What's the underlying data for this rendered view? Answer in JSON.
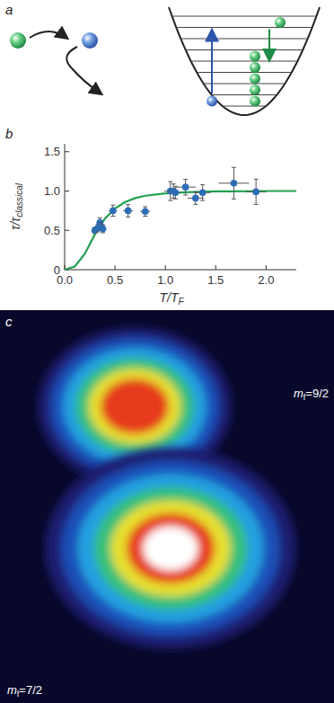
{
  "panel_a": {
    "letter": "a"
  },
  "chart_data": {
    "letter": "b",
    "type": "scatter",
    "x_label": "T/T",
    "x_label_sub": "F",
    "y_label": "τ/τ",
    "y_label_sub": "classical",
    "xlim": [
      0,
      2.3
    ],
    "ylim": [
      0,
      1.6
    ],
    "xticks": [
      {
        "value": 0,
        "label": "0.0"
      },
      0.5,
      {
        "value": 1,
        "label": "1.0"
      },
      1.5,
      {
        "value": 2,
        "label": "2.0"
      }
    ],
    "yticks": [
      0,
      0.5,
      {
        "value": 1,
        "label": "1.0"
      },
      1.5
    ],
    "grid": false,
    "series": [
      {
        "type": "scatter",
        "color": "#2d6db5",
        "marker": "circle",
        "x": [
          0.3,
          0.33,
          0.35,
          0.36,
          0.38,
          0.48,
          0.63,
          0.8,
          1.05,
          1.08,
          1.1,
          1.2,
          1.3,
          1.37,
          1.68,
          1.9
        ],
        "values": [
          0.5,
          0.53,
          0.6,
          0.55,
          0.52,
          0.75,
          0.75,
          0.74,
          1.0,
          1.0,
          0.98,
          1.05,
          0.91,
          0.98,
          1.1,
          0.99
        ],
        "x_errors": [
          0.03,
          0.03,
          0.03,
          0.03,
          0.03,
          0.04,
          0.05,
          0.05,
          0.06,
          0.05,
          0.05,
          0.1,
          0.08,
          0.08,
          0.15,
          0.1
        ],
        "errors": [
          0.04,
          0.05,
          0.06,
          0.05,
          0.05,
          0.07,
          0.08,
          0.06,
          0.12,
          0.09,
          0.08,
          0.1,
          0.08,
          0.1,
          0.2,
          0.16
        ]
      },
      {
        "type": "line",
        "color": "#22a050",
        "line_style": "solid",
        "x": [
          0,
          0.1,
          0.2,
          0.3,
          0.4,
          0.5,
          0.6,
          0.7,
          0.8,
          1.0,
          1.2,
          1.5,
          2.0,
          2.3
        ],
        "values": [
          0,
          0.04,
          0.2,
          0.45,
          0.65,
          0.78,
          0.86,
          0.91,
          0.94,
          0.97,
          0.985,
          0.995,
          1.0,
          1.0
        ]
      }
    ]
  },
  "panel_c": {
    "letter": "c",
    "labels": [
      {
        "main": "m",
        "sub": "f",
        "rest": "=9/2"
      },
      {
        "main": "m",
        "sub": "f",
        "rest": "=7/2"
      }
    ]
  }
}
